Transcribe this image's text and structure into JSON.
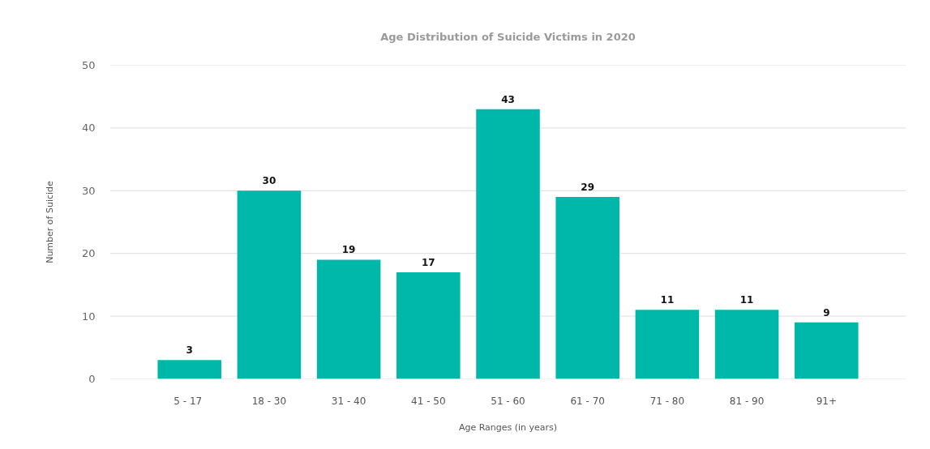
{
  "chart_data": {
    "type": "bar",
    "title": "Age Distribution of Suicide Victims in 2020",
    "xlabel": "Age Ranges (in years)",
    "ylabel": "Number of Suicide",
    "categories": [
      "5  - 17",
      "18 - 30",
      "31 - 40",
      "41 - 50",
      "51 - 60",
      "61 - 70",
      "71 - 80",
      "81 - 90",
      "91+"
    ],
    "values": [
      3,
      30,
      19,
      17,
      43,
      29,
      11,
      11,
      9
    ],
    "color": "#00b8a9",
    "ylim": [
      0,
      50
    ],
    "yticks": [
      0,
      10,
      20,
      30,
      40,
      50
    ],
    "grid": "y",
    "data_labels": true
  }
}
